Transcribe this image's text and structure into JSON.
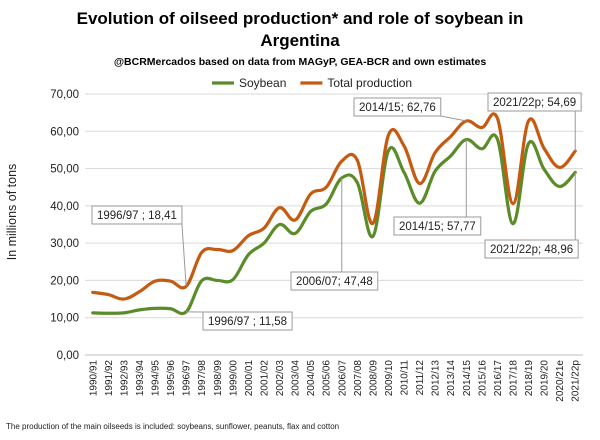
{
  "chart_data": {
    "type": "line",
    "title": "Evolution of oilseed production* and role of soybean in Argentina",
    "subtitle": "@BCRMercados based on data from MAGyP, GEA-BCR and own estimates",
    "ylabel": "In millions of tons",
    "xlabel": "",
    "ylim": [
      0,
      70
    ],
    "yticks": [
      "0,00",
      "10,00",
      "20,00",
      "30,00",
      "40,00",
      "50,00",
      "60,00",
      "70,00"
    ],
    "grid": true,
    "legend_position": "top",
    "categories": [
      "1990/91",
      "1991/92",
      "1992/93",
      "1993/94",
      "1994/95",
      "1995/96",
      "1996/97",
      "1997/98",
      "1998/99",
      "1999/00",
      "2000/01",
      "2001/02",
      "2002/03",
      "2003/04",
      "2004/05",
      "2005/06",
      "2006/07",
      "2007/08",
      "2008/09",
      "2009/10",
      "2010/11",
      "2011/12",
      "2012/13",
      "2013/14",
      "2014/15",
      "2015/16",
      "2016/17",
      "2017/18",
      "2018/19",
      "2019/20",
      "2020/21e",
      "2021/22p"
    ],
    "series": [
      {
        "name": "Soybean",
        "color": "#5b8c2a",
        "values": [
          11.3,
          11.2,
          11.3,
          12.1,
          12.5,
          12.4,
          11.58,
          19.9,
          20.0,
          20.2,
          26.9,
          30.0,
          35.0,
          32.6,
          38.5,
          40.5,
          47.48,
          46.2,
          31.8,
          54.8,
          49.0,
          40.7,
          49.3,
          53.4,
          57.77,
          55.3,
          57.9,
          35.2,
          56.7,
          49.8,
          45.2,
          48.96
        ]
      },
      {
        "name": "Total production",
        "color": "#c55a11",
        "values": [
          16.8,
          16.2,
          15.0,
          17.0,
          19.8,
          19.8,
          18.41,
          27.5,
          28.3,
          28.0,
          32.0,
          34.0,
          39.5,
          36.2,
          43.2,
          45.0,
          52.0,
          52.2,
          35.3,
          59.0,
          56.1,
          46.0,
          54.3,
          58.6,
          62.76,
          61.0,
          63.5,
          40.6,
          62.8,
          55.4,
          50.3,
          54.69
        ]
      }
    ],
    "annotations": [
      {
        "text": "1996/97 ; 18,41",
        "series": 1,
        "index": 6
      },
      {
        "text": "1996/97 ; 11,58",
        "series": 0,
        "index": 6
      },
      {
        "text": "2006/07; 47,48",
        "series": 0,
        "index": 16
      },
      {
        "text": "2014/15; 62,76",
        "series": 1,
        "index": 24
      },
      {
        "text": "2014/15; 57,77",
        "series": 0,
        "index": 24
      },
      {
        "text": "2021/22p; 54,69",
        "series": 1,
        "index": 31
      },
      {
        "text": "2021/22p; 48,96",
        "series": 0,
        "index": 31
      }
    ],
    "footnote": "The production of the main oilseeds is included: soybeans, sunflower, peanuts, flax and cotton"
  }
}
